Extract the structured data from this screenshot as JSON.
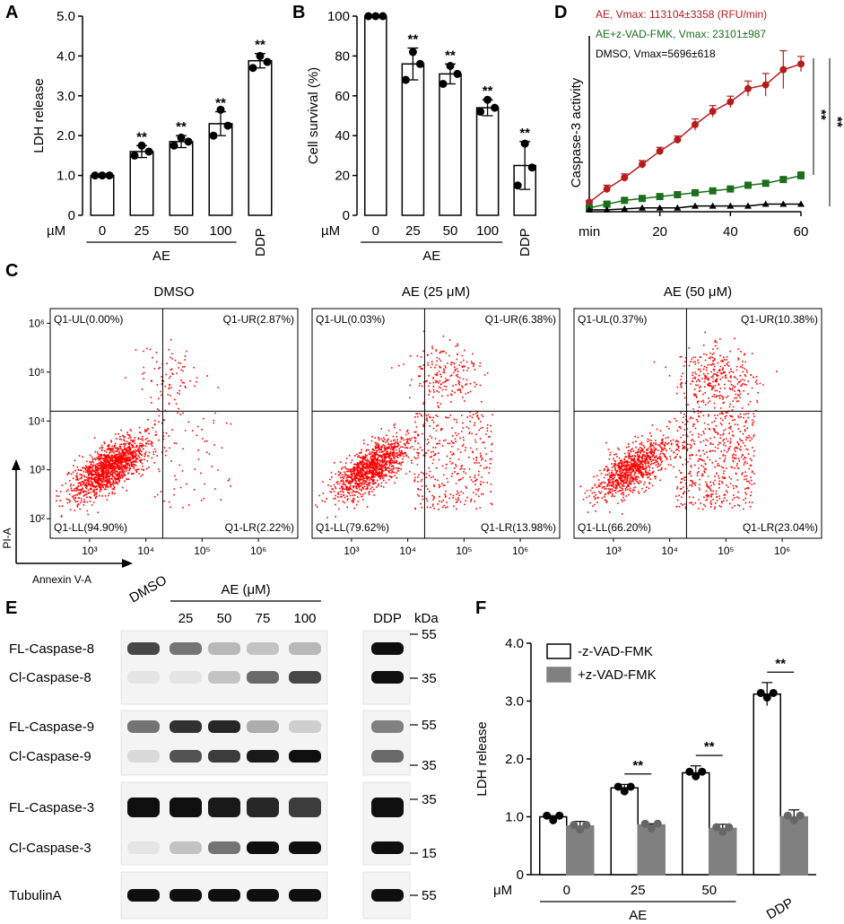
{
  "panels": {
    "A": {
      "letter": "A",
      "chart_data": {
        "type": "bar",
        "categories": [
          "0",
          "25",
          "50",
          "100",
          "DDP"
        ],
        "values": [
          1.0,
          1.6,
          1.85,
          2.3,
          3.88
        ],
        "errors": [
          0.02,
          0.15,
          0.15,
          0.3,
          0.18
        ],
        "points": [
          [
            1.0,
            1.0,
            1.0
          ],
          [
            1.5,
            1.6,
            1.75
          ],
          [
            1.75,
            1.85,
            1.95
          ],
          [
            2.0,
            2.25,
            2.65
          ],
          [
            3.7,
            3.85,
            4.0
          ]
        ],
        "significance": [
          "",
          "**",
          "**",
          "**",
          "**"
        ],
        "ylabel": "LDH release",
        "ylim": [
          0,
          5
        ],
        "yticks": [
          "0",
          "1.0",
          "2.0",
          "3.0",
          "4.0",
          "5.0"
        ],
        "unit_label": "µM",
        "group_label": "AE"
      }
    },
    "B": {
      "letter": "B",
      "chart_data": {
        "type": "bar",
        "categories": [
          "0",
          "25",
          "50",
          "100",
          "DDP"
        ],
        "values": [
          100,
          76,
          71,
          54,
          25
        ],
        "errors": [
          0.5,
          8,
          5,
          4,
          12
        ],
        "points": [
          [
            100,
            100,
            100
          ],
          [
            68,
            76,
            82
          ],
          [
            66,
            71,
            75
          ],
          [
            52,
            54,
            58
          ],
          [
            15,
            24,
            36
          ]
        ],
        "significance": [
          "",
          "**",
          "**",
          "**",
          "**"
        ],
        "ylabel": "Cell survival (%)",
        "ylim": [
          0,
          100
        ],
        "yticks": [
          "0",
          "20",
          "40",
          "60",
          "80",
          "100"
        ],
        "unit_label": "µM",
        "group_label": "AE"
      }
    },
    "D": {
      "letter": "D",
      "chart_data": {
        "type": "line",
        "x": [
          0,
          5,
          10,
          15,
          20,
          25,
          30,
          35,
          40,
          45,
          50,
          55,
          60
        ],
        "series": [
          {
            "name": "AE",
            "color": "#b71c1c",
            "marker": "circle",
            "values": [
              5,
              12,
              18,
              25,
              32,
              38,
              46,
              53,
              58,
              65,
              67,
              75,
              78
            ],
            "errors": [
              1,
              2,
              2,
              2,
              2,
              2,
              3,
              3,
              3,
              4,
              6,
              10,
              4
            ]
          },
          {
            "name": "AE+z-VAD-FMK",
            "color": "#1b6e1b",
            "marker": "square",
            "values": [
              2,
              4,
              6,
              7,
              8,
              9,
              10,
              11,
              12,
              14,
              15,
              17,
              19
            ],
            "errors": [
              0.5,
              1,
              1,
              1,
              1,
              1,
              1,
              1,
              1,
              1,
              1,
              1,
              2
            ]
          },
          {
            "name": "DMSO",
            "color": "#000000",
            "marker": "triangle",
            "values": [
              1,
              1,
              1.5,
              2,
              2,
              2,
              3,
              3,
              3,
              3,
              4,
              4,
              4
            ],
            "errors": [
              0.2,
              0.2,
              0.2,
              0.2,
              0.2,
              0.2,
              0.2,
              0.2,
              0.2,
              0.2,
              0.2,
              0.2,
              0.2
            ]
          }
        ],
        "legend": [
          {
            "text": "AE, Vmax: 113104±3358 (RFU/min)",
            "color": "#b71c1c"
          },
          {
            "text": "AE+z-VAD-FMK, Vmax: 23101±987",
            "color": "#1b6e1b"
          },
          {
            "text": "DMSO, Vmax=5696±618",
            "color": "#000000"
          }
        ],
        "ylabel": "Caspase-3 activity",
        "xlabel": "min",
        "xticks": [
          "20",
          "40",
          "60"
        ],
        "ylim": [
          0,
          90
        ],
        "xlim": [
          0,
          60
        ],
        "significance": [
          "**",
          "**"
        ]
      }
    },
    "C": {
      "letter": "C",
      "xlabel": "Annexin V-A",
      "ylabel": "PI-A",
      "plots": [
        {
          "title": "DMSO",
          "ul": "Q1-UL(0.00%)",
          "ur": "Q1-UR(2.87%)",
          "ll": "Q1-LL(94.90%)",
          "lr": "Q1-LR(2.22%)",
          "n_ll": 1400,
          "n_lr": 70,
          "n_ur": 90,
          "spread": 0
        },
        {
          "title": "AE (25 μM)",
          "ul": "Q1-UL(0.03%)",
          "ur": "Q1-UR(6.38%)",
          "ll": "Q1-LL(79.62%)",
          "lr": "Q1-LR(13.98%)",
          "n_ll": 1100,
          "n_lr": 350,
          "n_ur": 200,
          "spread": 1
        },
        {
          "title": "AE (50 μM)",
          "ul": "Q1-UL(0.37%)",
          "ur": "Q1-UR(10.38%)",
          "ll": "Q1-LL(66.20%)",
          "lr": "Q1-LR(23.04%)",
          "n_ll": 900,
          "n_lr": 500,
          "n_ur": 330,
          "spread": 2
        }
      ],
      "xticks": [
        "10³",
        "10⁴",
        "10⁵",
        "10⁶"
      ],
      "yticks": [
        "10²",
        "10³",
        "10⁴",
        "10⁵",
        "10⁶"
      ]
    },
    "E": {
      "letter": "E",
      "group_label": "AE (μM)",
      "lanes": [
        "DMSO",
        "25",
        "50",
        "75",
        "100",
        "DDP"
      ],
      "kda_label": "kDa",
      "blots": [
        {
          "labels": [
            "FL-Caspase-8",
            "Cl-Caspase-8"
          ],
          "markers": [
            "55",
            "35"
          ],
          "intensity_top": [
            0.75,
            0.55,
            0.25,
            0.2,
            0.25,
            1.0
          ],
          "intensity_bottom": [
            0.05,
            0.05,
            0.2,
            0.6,
            0.75,
            1.0
          ]
        },
        {
          "labels": [
            "FL-Caspase-9",
            "Cl-Caspase-9"
          ],
          "markers": [
            "55",
            "35"
          ],
          "intensity_top": [
            0.55,
            0.85,
            0.9,
            0.3,
            0.15,
            0.5
          ],
          "intensity_bottom": [
            0.1,
            0.7,
            0.8,
            0.95,
            1.0,
            0.6
          ]
        },
        {
          "labels": [
            "FL-Caspase-3",
            "Cl-Caspase-3"
          ],
          "markers": [
            "35",
            "15"
          ],
          "intensity_top": [
            1.0,
            1.0,
            0.95,
            0.9,
            0.8,
            1.0
          ],
          "intensity_bottom": [
            0.05,
            0.2,
            0.55,
            1.0,
            1.0,
            1.0
          ]
        },
        {
          "labels": [
            "TubulinA"
          ],
          "markers": [
            "55"
          ],
          "intensity_top": [
            1.0,
            1.0,
            1.0,
            1.0,
            1.0,
            1.0
          ]
        }
      ]
    },
    "F": {
      "letter": "F",
      "chart_data": {
        "type": "bar",
        "categories": [
          "0",
          "25",
          "50",
          "DDP"
        ],
        "series": [
          {
            "name": "-z-VAD-FMK",
            "color": "#ffffff",
            "values": [
              1.0,
              1.5,
              1.76,
              3.12
            ],
            "errors": [
              0.02,
              0.06,
              0.12,
              0.2
            ]
          },
          {
            "name": "+z-VAD-FMK",
            "color": "#808080",
            "values": [
              0.84,
              0.86,
              0.8,
              1.0
            ],
            "errors": [
              0.08,
              0.02,
              0.07,
              0.12
            ]
          }
        ],
        "significance": [
          "",
          "**",
          "**",
          "**"
        ],
        "ylabel": "LDH release",
        "ylim": [
          0,
          4
        ],
        "yticks": [
          "0",
          "1.0",
          "2.0",
          "3.0",
          "4.0"
        ],
        "unit_label": "μM",
        "group_label": "AE"
      }
    }
  }
}
